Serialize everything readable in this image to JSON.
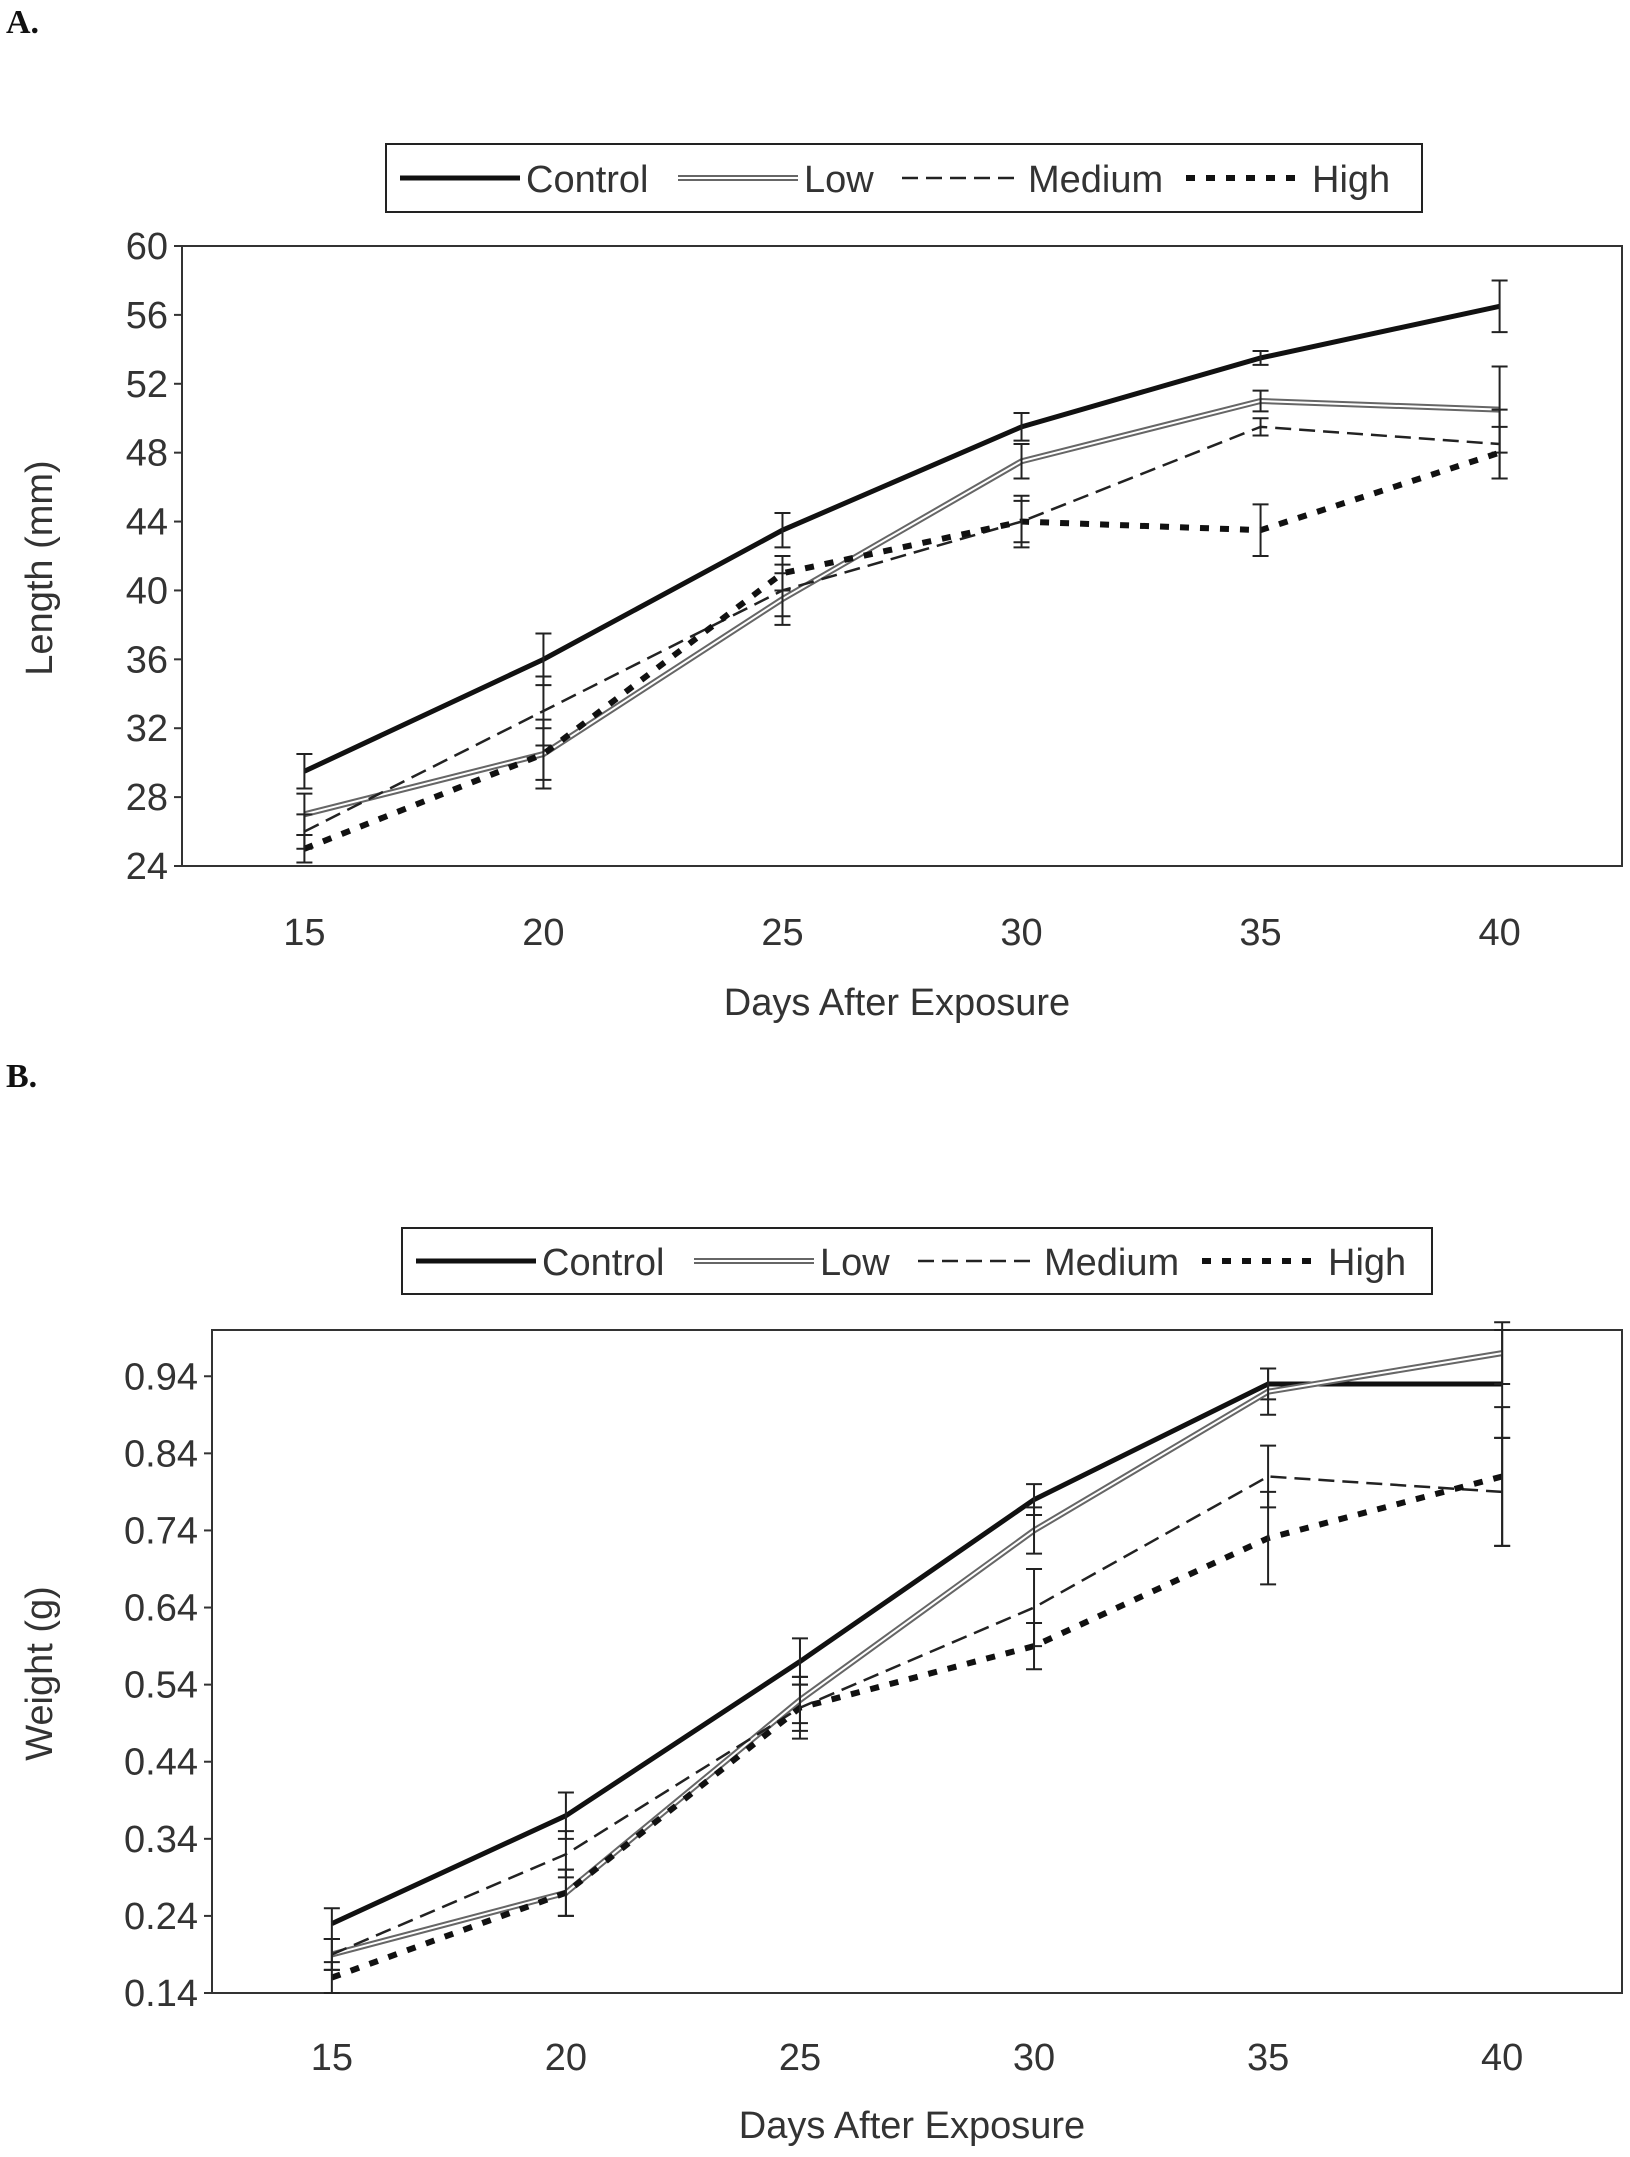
{
  "chart_data": [
    {
      "panel_label": "A.",
      "type": "line",
      "title": "",
      "xlabel": "Days After Exposure",
      "ylabel": "Length (mm)",
      "categories": [
        "15",
        "20",
        "25",
        "30",
        "35",
        "40"
      ],
      "x": [
        15,
        20,
        25,
        30,
        35,
        40
      ],
      "ylim": [
        24,
        60
      ],
      "yticks": [
        "24",
        "28",
        "32",
        "36",
        "40",
        "44",
        "48",
        "52",
        "56",
        "60"
      ],
      "ytick_values": [
        24,
        28,
        32,
        36,
        40,
        44,
        48,
        52,
        56,
        60
      ],
      "legend": [
        "Control",
        "Low",
        "Medium",
        "High"
      ],
      "legend_position": "top-center",
      "series": [
        {
          "name": "Control",
          "style": "solid",
          "values": [
            29.5,
            36,
            43.5,
            49.5,
            53.5,
            56.5
          ],
          "errors": [
            1,
            1.5,
            1,
            0.8,
            0.4,
            1.5
          ]
        },
        {
          "name": "Low",
          "style": "double",
          "values": [
            27,
            30.5,
            39.5,
            47.5,
            51,
            50.5
          ],
          "errors": [
            1.2,
            2,
            1.5,
            1,
            0.6,
            2.5
          ]
        },
        {
          "name": "Medium",
          "style": "dashed",
          "values": [
            26,
            33,
            40,
            44,
            49.5,
            48.5
          ],
          "errors": [
            1,
            2,
            1.5,
            1.2,
            0.5,
            2
          ]
        },
        {
          "name": "High",
          "style": "dotted",
          "values": [
            25,
            30.5,
            41,
            44,
            43.5,
            48
          ],
          "errors": [
            0.8,
            1.5,
            1,
            1.5,
            1.5,
            1.5
          ]
        }
      ]
    },
    {
      "panel_label": "B.",
      "type": "line",
      "title": "",
      "xlabel": "Days After Exposure",
      "ylabel": "Weight (g)",
      "categories": [
        "15",
        "20",
        "25",
        "30",
        "35",
        "40"
      ],
      "x": [
        15,
        20,
        25,
        30,
        35,
        40
      ],
      "ylim": [
        0.14,
        1.0
      ],
      "yticks": [
        "0.14",
        "0.24",
        "0.34",
        "0.44",
        "0.54",
        "0.64",
        "0.74",
        "0.84",
        "0.94"
      ],
      "ytick_values": [
        0.14,
        0.24,
        0.34,
        0.44,
        0.54,
        0.64,
        0.74,
        0.84,
        0.94
      ],
      "legend": [
        "Control",
        "Low",
        "Medium",
        "High"
      ],
      "legend_position": "top-center",
      "series": [
        {
          "name": "Control",
          "style": "solid",
          "values": [
            0.23,
            0.37,
            0.57,
            0.78,
            0.93,
            0.93
          ],
          "errors": [
            0.02,
            0.03,
            0.03,
            0.02,
            0.02,
            0.07
          ]
        },
        {
          "name": "Low",
          "style": "double",
          "values": [
            0.19,
            0.27,
            0.52,
            0.74,
            0.92,
            0.97
          ],
          "errors": [
            0.02,
            0.03,
            0.03,
            0.03,
            0.03,
            0.04
          ]
        },
        {
          "name": "Medium",
          "style": "dashed",
          "values": [
            0.19,
            0.32,
            0.51,
            0.64,
            0.81,
            0.79
          ],
          "errors": [
            0.02,
            0.03,
            0.04,
            0.05,
            0.04,
            0.07
          ]
        },
        {
          "name": "High",
          "style": "dotted",
          "values": [
            0.16,
            0.27,
            0.51,
            0.59,
            0.73,
            0.81
          ],
          "errors": [
            0.02,
            0.03,
            0.03,
            0.03,
            0.06,
            0.09
          ]
        }
      ]
    }
  ]
}
